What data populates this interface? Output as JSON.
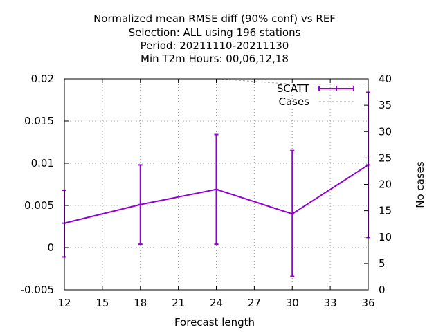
{
  "chart_data": {
    "type": "line",
    "title_lines": [
      "Normalized mean RMSE diff (90% conf) vs REF",
      "Selection: ALL using   196 stations",
      "Period: 20211110-20211130",
      "Min T2m   Hours:  00,06,12,18"
    ],
    "xlabel": "Forecast length",
    "ylabel": "",
    "y2label": "No cases",
    "xlim": [
      12,
      36
    ],
    "ylim": [
      -0.005,
      0.02
    ],
    "y2lim": [
      0,
      40
    ],
    "xticks": [
      12,
      15,
      18,
      21,
      24,
      27,
      30,
      33,
      36
    ],
    "xtick_labels": [
      "12",
      "15",
      "18",
      "21",
      "24",
      "27",
      "30",
      "33",
      "36"
    ],
    "yticks": [
      -0.005,
      0,
      0.005,
      0.01,
      0.015,
      0.02
    ],
    "ytick_labels": [
      "-0.005",
      "0",
      "0.005",
      "0.01",
      "0.015",
      "0.02"
    ],
    "y2ticks": [
      0,
      5,
      10,
      15,
      20,
      25,
      30,
      35,
      40
    ],
    "y2tick_labels": [
      "0",
      "5",
      "10",
      "15",
      "20",
      "25",
      "30",
      "35",
      "40"
    ],
    "grid": true,
    "legend_position": "top-right",
    "series": [
      {
        "name": "SCATT",
        "color": "#9400d3",
        "style": "line-errorbars",
        "x": [
          12,
          18,
          24,
          30,
          36
        ],
        "y": [
          0.0029,
          0.0051,
          0.0069,
          0.004,
          0.0098
        ],
        "err_low": [
          -0.0011,
          0.0004,
          0.0004,
          -0.0034,
          0.0012
        ],
        "err_high": [
          0.0068,
          0.0098,
          0.0134,
          0.0115,
          0.0184
        ]
      },
      {
        "name": "Cases",
        "color": "#a0a0a0",
        "style": "dashed",
        "axis": "y2",
        "x": [
          12,
          24,
          30,
          36
        ],
        "y": [
          40,
          40,
          39,
          39
        ]
      }
    ]
  }
}
